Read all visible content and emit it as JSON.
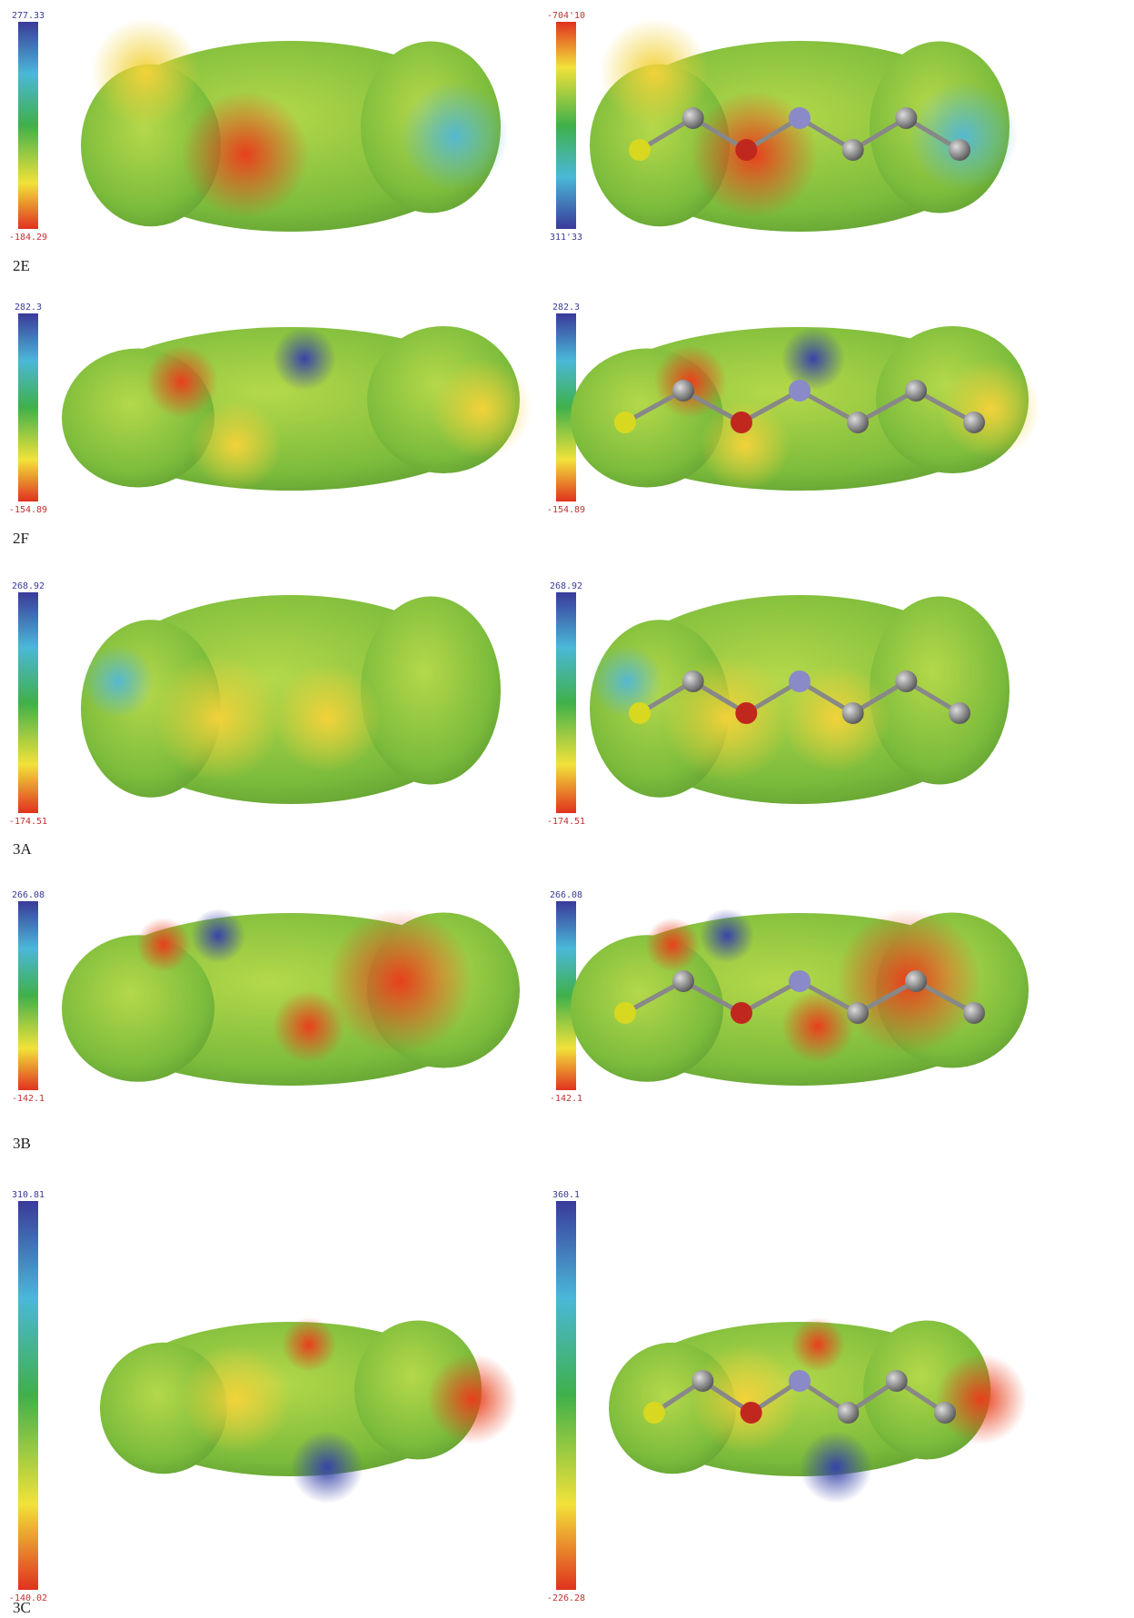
{
  "panels": [
    {
      "label": "2E",
      "left_scale": {
        "top": "277.33",
        "bottom": "-184.29"
      },
      "right_scale": {
        "top": "-704'10",
        "bottom": "311'33"
      }
    },
    {
      "label": "2F",
      "left_scale": {
        "top": "282.3",
        "bottom": "-154.89"
      },
      "right_scale": {
        "top": "282.3",
        "bottom": "-154.89"
      }
    },
    {
      "label": "3A",
      "left_scale": {
        "top": "268.92",
        "bottom": "-174.51"
      },
      "right_scale": {
        "top": "268.92",
        "bottom": "-174.51"
      }
    },
    {
      "label": "3B",
      "left_scale": {
        "top": "266.08",
        "bottom": "-142.1"
      },
      "right_scale": {
        "top": "266.08",
        "bottom": "-142.1"
      }
    },
    {
      "label": "3C",
      "left_scale": {
        "top": "310.81",
        "bottom": "-140.02"
      },
      "right_scale": {
        "top": "360.1",
        "bottom": "-226.28"
      }
    }
  ]
}
